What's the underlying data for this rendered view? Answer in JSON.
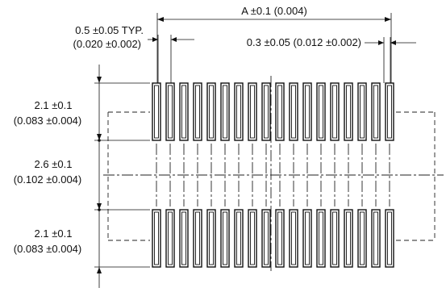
{
  "dimensions": {
    "overall_width": "A ±0.1 (0.004)",
    "pitch_line1": "0.5 ±0.05 TYP.",
    "pitch_line2": "(0.020 ±0.002)",
    "pad_width": "0.3 ±0.05 (0.012 ±0.002)",
    "top_pad_length_line1": "2.1 ±0.1",
    "top_pad_length_line2": "(0.083 ±0.004)",
    "gap_line1": "2.6 ±0.1",
    "gap_line2": "(0.102 ±0.004)",
    "bottom_pad_length_line1": "2.1 ±0.1",
    "bottom_pad_length_line2": "(0.083 ±0.004)"
  },
  "pad_rows": {
    "pads_per_row": 18,
    "row_count": 2
  }
}
